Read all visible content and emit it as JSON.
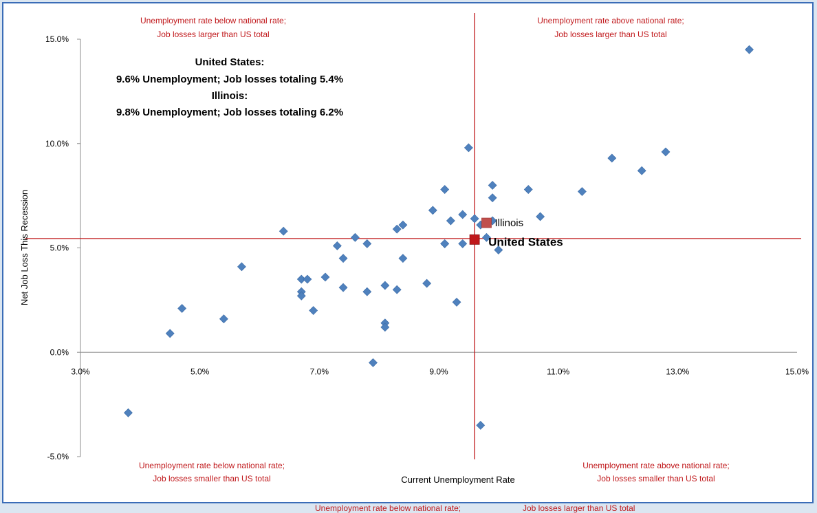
{
  "quadrant_labels": {
    "top_left": [
      "Unemployment rate below national rate;",
      "Job losses larger than US total"
    ],
    "top_right": [
      "Unemployment rate above national rate;",
      "Job losses larger than US total"
    ],
    "bottom_left": [
      "Unemployment rate below national rate;",
      "Job losses smaller than US total"
    ],
    "bottom_right": [
      "Unemployment rate above national rate;",
      "Job losses smaller than US total"
    ]
  },
  "footer": {
    "left": "Unemployment rate below national rate;",
    "right": "Job losses larger than US total"
  },
  "colors": {
    "point": "#4f81bd",
    "point_edge": "#3a6aa6",
    "reference_line": "#c0181b",
    "us_marker": "#c0181b",
    "il_marker": "#c0504d",
    "quadrant_text": "#c0181b",
    "border": "#3a6cb7"
  },
  "chart_data": {
    "type": "scatter",
    "xlabel": "Current Unemployment Rate",
    "ylabel": "Net Job Loss This Recession",
    "xlim": [
      3.0,
      15.0
    ],
    "ylim": [
      -5.0,
      15.0
    ],
    "x_ticks": [
      "3.0%",
      "5.0%",
      "7.0%",
      "9.0%",
      "11.0%",
      "13.0%",
      "15.0%"
    ],
    "y_ticks": [
      "-5.0%",
      "0.0%",
      "5.0%",
      "10.0%",
      "15.0%"
    ],
    "reference_lines": {
      "x": 9.6,
      "y": 5.45
    },
    "annotation": [
      "United States:",
      "9.6% Unemployment; Job losses totaling 5.4%",
      "Illinois:",
      "9.8% Unemployment; Job losses totaling 6.2%"
    ],
    "highlights": [
      {
        "label": "United States",
        "x": 9.6,
        "y": 5.4
      },
      {
        "label": "Illinois",
        "x": 9.8,
        "y": 6.2
      }
    ],
    "points": [
      [
        3.8,
        -2.9
      ],
      [
        4.5,
        0.9
      ],
      [
        4.7,
        2.1
      ],
      [
        5.4,
        1.6
      ],
      [
        5.7,
        4.1
      ],
      [
        6.4,
        5.8
      ],
      [
        6.7,
        3.5
      ],
      [
        6.7,
        2.9
      ],
      [
        6.7,
        2.7
      ],
      [
        6.8,
        3.5
      ],
      [
        6.9,
        2.0
      ],
      [
        7.1,
        3.6
      ],
      [
        7.3,
        5.1
      ],
      [
        7.4,
        4.5
      ],
      [
        7.4,
        3.1
      ],
      [
        7.6,
        5.5
      ],
      [
        7.8,
        5.2
      ],
      [
        7.8,
        2.9
      ],
      [
        7.9,
        -0.5
      ],
      [
        8.1,
        3.2
      ],
      [
        8.1,
        1.4
      ],
      [
        8.1,
        1.2
      ],
      [
        8.3,
        5.9
      ],
      [
        8.3,
        3.0
      ],
      [
        8.4,
        6.1
      ],
      [
        8.4,
        4.5
      ],
      [
        8.8,
        3.3
      ],
      [
        8.9,
        6.8
      ],
      [
        9.1,
        7.8
      ],
      [
        9.1,
        5.2
      ],
      [
        9.1,
        5.2
      ],
      [
        9.2,
        6.3
      ],
      [
        9.3,
        2.4
      ],
      [
        9.4,
        6.6
      ],
      [
        9.4,
        5.2
      ],
      [
        9.5,
        9.8
      ],
      [
        9.6,
        6.4
      ],
      [
        9.7,
        6.1
      ],
      [
        9.7,
        -3.5
      ],
      [
        9.8,
        5.5
      ],
      [
        9.9,
        8.0
      ],
      [
        9.9,
        7.4
      ],
      [
        9.9,
        6.3
      ],
      [
        10.0,
        4.9
      ],
      [
        10.5,
        7.8
      ],
      [
        10.7,
        6.5
      ],
      [
        11.4,
        7.7
      ],
      [
        11.9,
        9.3
      ],
      [
        12.4,
        8.7
      ],
      [
        12.8,
        9.6
      ],
      [
        14.2,
        14.5
      ]
    ]
  }
}
